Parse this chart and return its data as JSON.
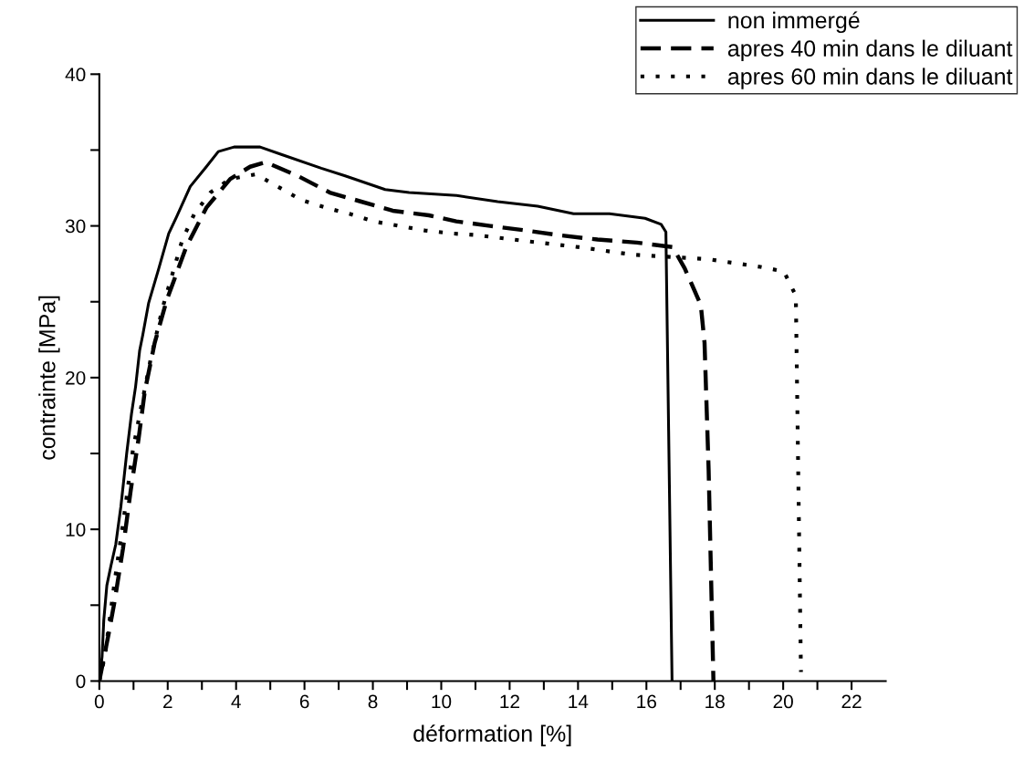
{
  "chart_data": {
    "type": "line",
    "xlabel": "déformation [%]",
    "ylabel": "contrainte [MPa]",
    "xlim": [
      0,
      23
    ],
    "ylim": [
      0,
      40
    ],
    "xticks": [
      0,
      {
        "value": 1,
        "label": null
      },
      2,
      {
        "value": 3,
        "label": null
      },
      4,
      {
        "value": 5,
        "label": null
      },
      6,
      {
        "value": 7,
        "label": null
      },
      8,
      {
        "value": 9,
        "label": null
      },
      10,
      {
        "value": 11,
        "label": null
      },
      12,
      {
        "value": 13,
        "label": null
      },
      14,
      {
        "value": 15,
        "label": null
      },
      16,
      {
        "value": 17,
        "label": null
      },
      18,
      {
        "value": 19,
        "label": null
      },
      20,
      {
        "value": 21,
        "label": null
      },
      22
    ],
    "yticks": [
      0,
      {
        "value": 5,
        "label": null
      },
      10,
      {
        "value": 15,
        "label": null
      },
      20,
      {
        "value": 25,
        "label": null
      },
      30,
      {
        "value": 35,
        "label": null
      },
      40
    ],
    "grid": false,
    "legend": "top right",
    "marker": "none",
    "series": [
      {
        "name": "non immergé",
        "color": "#000000",
        "line_style": "solid",
        "x": [
          0,
          0.08,
          0.13,
          0.22,
          0.34,
          0.48,
          0.63,
          0.8,
          0.94,
          1.06,
          1.18,
          1.27,
          1.44,
          1.74,
          2.03,
          2.26,
          2.66,
          3.13,
          3.48,
          3.94,
          4.7,
          5.34,
          6.49,
          7.19,
          8.36,
          9.06,
          10.45,
          11.65,
          12.82,
          13.87,
          14.92,
          15.96,
          16.43,
          16.57,
          16.65,
          16.75
        ],
        "values": [
          0,
          1.6,
          4.0,
          6.3,
          7.6,
          9.0,
          11.5,
          15.0,
          17.6,
          19.4,
          21.8,
          22.8,
          24.9,
          27.2,
          29.5,
          30.6,
          32.6,
          33.9,
          34.9,
          35.2,
          35.2,
          34.7,
          33.8,
          33.3,
          32.4,
          32.2,
          32.0,
          31.6,
          31.3,
          30.8,
          30.8,
          30.5,
          30.1,
          29.6,
          16.5,
          0
        ]
      },
      {
        "name": "apres 40 min dans le diluant",
        "color": "#000000",
        "line_style": "dashed",
        "x": [
          0,
          0.28,
          0.45,
          0.69,
          0.92,
          1.15,
          1.33,
          1.62,
          1.97,
          2.54,
          3.13,
          3.83,
          4.41,
          4.87,
          5.8,
          6.74,
          7.66,
          8.58,
          9.64,
          10.44,
          11.43,
          12.47,
          13.4,
          14.57,
          15.72,
          16.77,
          17.12,
          17.59,
          17.7,
          17.82,
          17.96
        ],
        "values": [
          0,
          3.2,
          5.3,
          8.7,
          12.6,
          16.0,
          19.1,
          22.3,
          25.1,
          28.6,
          31.2,
          33.1,
          33.9,
          34.2,
          33.3,
          32.2,
          31.6,
          31.0,
          30.7,
          30.3,
          30.0,
          29.7,
          29.4,
          29.1,
          28.9,
          28.6,
          27.2,
          24.8,
          22.3,
          13.9,
          0
        ]
      },
      {
        "name": "apres 60 min dans le diluant",
        "color": "#000000",
        "line_style": "dotted",
        "x": [
          0,
          0.16,
          0.45,
          0.75,
          0.98,
          1.2,
          1.5,
          1.85,
          2.43,
          2.78,
          3.25,
          3.83,
          4.58,
          5.21,
          5.91,
          6.62,
          7.31,
          8.01,
          8.77,
          9.52,
          10.33,
          11.01,
          12.47,
          14.03,
          15.61,
          16.36,
          17.82,
          19.33,
          20.02,
          20.37,
          20.52
        ],
        "values": [
          0,
          1.6,
          6.6,
          11.3,
          15.2,
          17.8,
          21.2,
          24.6,
          29.1,
          30.8,
          32.2,
          33.1,
          33.4,
          32.6,
          31.7,
          31.2,
          30.8,
          30.3,
          30.0,
          29.7,
          29.5,
          29.4,
          29.0,
          28.6,
          28.1,
          28.0,
          27.8,
          27.3,
          27.0,
          25.4,
          0.6
        ]
      }
    ]
  }
}
